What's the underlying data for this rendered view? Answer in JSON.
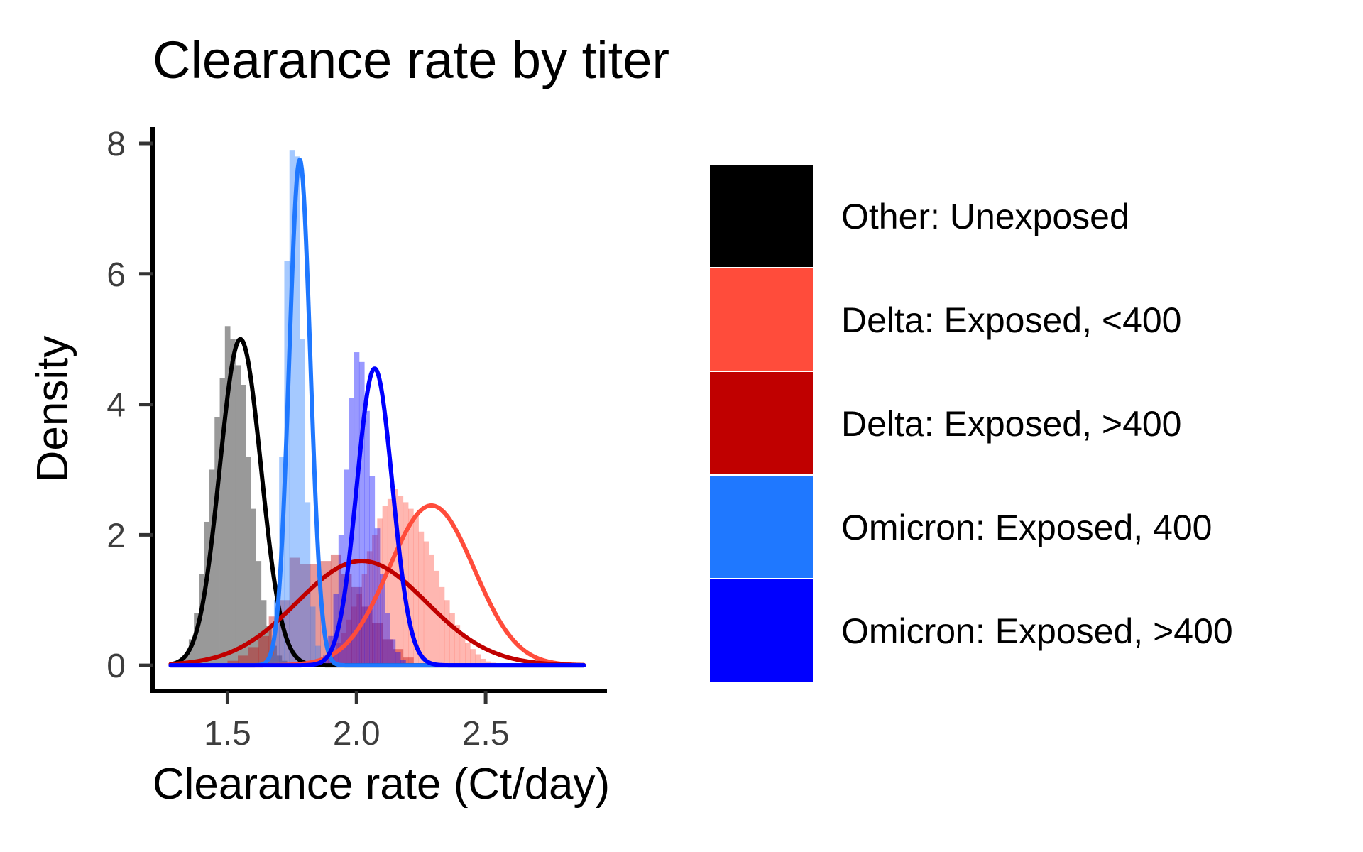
{
  "chart_data": {
    "type": "area",
    "title": "Clearance rate by titer",
    "xlabel": "Clearance rate (Ct/day)",
    "ylabel": "Density",
    "xlim": [
      1.21,
      2.97
    ],
    "ylim": [
      -0.39,
      8.25
    ],
    "x_ticks": [
      1.5,
      2.0,
      2.5
    ],
    "x_tick_labels": [
      "1.5",
      "2.0",
      "2.5"
    ],
    "y_ticks": [
      0,
      2,
      4,
      6,
      8
    ],
    "y_tick_labels": [
      "0",
      "2",
      "4",
      "6",
      "8"
    ],
    "grid": false,
    "legend": "right",
    "x_range": [
      1.28,
      2.88
    ],
    "series": [
      {
        "name": "Other: Unexposed",
        "color": "#000000",
        "fill": "#999999",
        "fill_opacity": 1,
        "curve": {
          "peak_x": 1.55,
          "peak_y": 5.0,
          "sd": 0.08
        },
        "histogram": {
          "x_start": 1.31,
          "bin_width": 0.02,
          "values": [
            0.05,
            0.15,
            0.4,
            0.8,
            1.4,
            2.2,
            3.0,
            3.8,
            4.4,
            5.2,
            5.0,
            4.6,
            4.3,
            3.2,
            2.4,
            1.6,
            1.0,
            0.6,
            0.3,
            0.15,
            0.07
          ]
        }
      },
      {
        "name": "Delta: Exposed, <400",
        "color": "#FF4C3B",
        "fill": "#FF4C3B",
        "fill_opacity": 0.4,
        "curve": {
          "peak_x": 2.29,
          "peak_y": 2.45,
          "sd": 0.165
        },
        "histogram": {
          "x_start": 1.86,
          "bin_width": 0.02,
          "values": [
            0.05,
            0.1,
            0.2,
            0.35,
            0.5,
            0.7,
            0.9,
            1.1,
            1.4,
            1.75,
            2.0,
            2.25,
            2.45,
            2.55,
            2.7,
            2.6,
            2.5,
            2.4,
            2.3,
            2.05,
            1.9,
            1.7,
            1.45,
            1.2,
            1.0,
            0.8,
            0.62,
            0.48,
            0.35,
            0.25,
            0.17,
            0.1,
            0.06,
            0.04
          ]
        }
      },
      {
        "name": "Delta: Exposed, >400",
        "color": "#C00000",
        "fill": "#C00000",
        "fill_opacity": 0.4,
        "curve": {
          "peak_x": 2.02,
          "peak_y": 1.6,
          "sd": 0.25
        },
        "histogram": {
          "x_start": 1.5,
          "bin_width": 0.04,
          "values": [
            0.07,
            0.15,
            0.28,
            0.45,
            0.75,
            1.0,
            1.65,
            1.55,
            1.55,
            1.6,
            1.7,
            1.4,
            1.2,
            0.9,
            0.65,
            0.4,
            0.25,
            0.12
          ]
        }
      },
      {
        "name": "Omicron: Exposed, 400",
        "color": "#1F78FF",
        "fill": "#1F78FF",
        "fill_opacity": 0.4,
        "curve": {
          "peak_x": 1.78,
          "peak_y": 7.75,
          "sd": 0.041
        },
        "histogram": {
          "x_start": 1.66,
          "bin_width": 0.02,
          "values": [
            0.15,
            1.0,
            3.2,
            6.2,
            7.9,
            7.8,
            5.0,
            2.5,
            0.9,
            0.3,
            0.1
          ]
        }
      },
      {
        "name": "Omicron: Exposed, >400",
        "color": "#0000FF",
        "fill": "#0000FF",
        "fill_opacity": 0.4,
        "curve": {
          "peak_x": 2.07,
          "peak_y": 4.55,
          "sd": 0.069
        },
        "histogram": {
          "x_start": 1.87,
          "bin_width": 0.02,
          "values": [
            0.15,
            0.45,
            1.1,
            2.0,
            3.0,
            4.1,
            4.8,
            4.65,
            3.9,
            2.9,
            2.1,
            1.4,
            0.8,
            0.4,
            0.2,
            0.08
          ]
        }
      }
    ]
  }
}
